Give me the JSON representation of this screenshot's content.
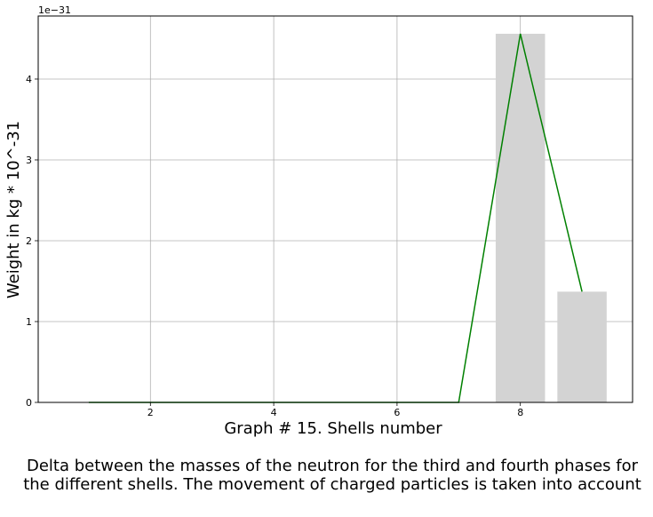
{
  "chart_data": {
    "type": "bar",
    "x": [
      1,
      2,
      3,
      4,
      5,
      6,
      7,
      8,
      9
    ],
    "values": [
      0,
      0,
      0,
      0,
      0,
      0,
      0,
      4.56,
      1.37
    ],
    "line_series": {
      "x": [
        1,
        2,
        3,
        4,
        5,
        6,
        7,
        8,
        9
      ],
      "values": [
        0,
        0,
        0,
        0,
        0,
        0,
        0,
        4.56,
        1.37
      ]
    },
    "xlabel": "Graph # 15. Shells number",
    "ylabel": "Weight in kg * 10^-31",
    "offset_text": "1e−31",
    "xticks": [
      2,
      4,
      6,
      8
    ],
    "yticks": [
      0,
      1,
      2,
      3,
      4
    ],
    "xlim": [
      0.18,
      9.82
    ],
    "ylim": [
      0,
      4.78
    ],
    "grid": true,
    "bar_color": "#d3d3d3",
    "line_color": "#008000",
    "caption_lines": [
      "Delta between the masses of the neutron for the third and fourth phases for",
      "the different shells. The movement of charged particles is taken into account"
    ]
  }
}
